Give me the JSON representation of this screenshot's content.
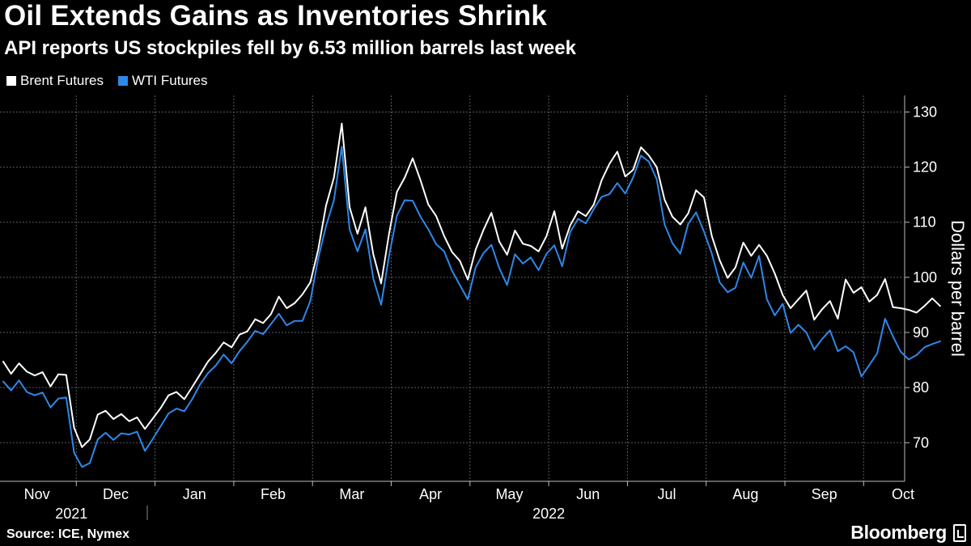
{
  "chart_data": {
    "type": "line",
    "title": "Oil Extends Gains as Inventories Shrink",
    "subtitle": "API reports US stockpiles fell by 6.53 million barrels last week",
    "ylabel": "Dollars per barrel",
    "xlabel": "",
    "ylim": [
      63,
      133
    ],
    "y_ticks": [
      70,
      80,
      90,
      100,
      110,
      120,
      130
    ],
    "x_range": [
      0,
      11.9
    ],
    "months": [
      "Nov",
      "Dec",
      "Jan",
      "Feb",
      "Mar",
      "Apr",
      "May",
      "Jun",
      "Jul",
      "Aug",
      "Sep",
      "Oct"
    ],
    "years": [
      {
        "label": "2021",
        "center": 1
      },
      {
        "label": "2022",
        "center": 7
      }
    ],
    "grid": true,
    "legend_position": "top-left",
    "series": [
      {
        "name": "Brent Futures",
        "color": "#ffffff",
        "points": [
          [
            0,
            84.7
          ],
          [
            0.1,
            82.5
          ],
          [
            0.2,
            84.4
          ],
          [
            0.3,
            82.9
          ],
          [
            0.4,
            82.2
          ],
          [
            0.5,
            82.8
          ],
          [
            0.6,
            80.2
          ],
          [
            0.7,
            82.4
          ],
          [
            0.8,
            82.3
          ],
          [
            0.9,
            72.7
          ],
          [
            1.0,
            69.2
          ],
          [
            1.1,
            70.6
          ],
          [
            1.2,
            75.1
          ],
          [
            1.3,
            75.8
          ],
          [
            1.4,
            74.3
          ],
          [
            1.5,
            75.2
          ],
          [
            1.6,
            73.9
          ],
          [
            1.7,
            74.6
          ],
          [
            1.8,
            72.5
          ],
          [
            1.9,
            74.4
          ],
          [
            2.0,
            76.3
          ],
          [
            2.1,
            78.6
          ],
          [
            2.2,
            79.2
          ],
          [
            2.3,
            77.9
          ],
          [
            2.4,
            80.1
          ],
          [
            2.5,
            82.4
          ],
          [
            2.6,
            84.7
          ],
          [
            2.7,
            86.3
          ],
          [
            2.8,
            88.2
          ],
          [
            2.9,
            87.3
          ],
          [
            3.0,
            89.6
          ],
          [
            3.1,
            90.2
          ],
          [
            3.2,
            92.4
          ],
          [
            3.3,
            91.7
          ],
          [
            3.4,
            93.3
          ],
          [
            3.5,
            96.5
          ],
          [
            3.6,
            94.4
          ],
          [
            3.7,
            95.3
          ],
          [
            3.8,
            96.9
          ],
          [
            3.9,
            99.1
          ],
          [
            4.0,
            105.0
          ],
          [
            4.1,
            113.0
          ],
          [
            4.2,
            118.1
          ],
          [
            4.3,
            127.9
          ],
          [
            4.4,
            112.7
          ],
          [
            4.5,
            107.9
          ],
          [
            4.6,
            112.7
          ],
          [
            4.7,
            104.2
          ],
          [
            4.8,
            98.9
          ],
          [
            4.9,
            107.9
          ],
          [
            5.0,
            115.5
          ],
          [
            5.1,
            118.1
          ],
          [
            5.2,
            121.6
          ],
          [
            5.3,
            117.6
          ],
          [
            5.4,
            113.2
          ],
          [
            5.5,
            111.1
          ],
          [
            5.6,
            107.5
          ],
          [
            5.7,
            104.6
          ],
          [
            5.8,
            103.0
          ],
          [
            5.9,
            99.6
          ],
          [
            6.0,
            105.0
          ],
          [
            6.1,
            108.6
          ],
          [
            6.2,
            111.7
          ],
          [
            6.3,
            106.5
          ],
          [
            6.4,
            104.1
          ],
          [
            6.5,
            108.5
          ],
          [
            6.6,
            106.1
          ],
          [
            6.7,
            105.7
          ],
          [
            6.8,
            104.7
          ],
          [
            6.9,
            107.5
          ],
          [
            7.0,
            112.0
          ],
          [
            7.1,
            105.2
          ],
          [
            7.2,
            109.4
          ],
          [
            7.3,
            112.0
          ],
          [
            7.4,
            111.1
          ],
          [
            7.5,
            113.2
          ],
          [
            7.6,
            117.6
          ],
          [
            7.7,
            120.6
          ],
          [
            7.8,
            122.8
          ],
          [
            7.9,
            118.3
          ],
          [
            8.0,
            119.5
          ],
          [
            8.1,
            123.6
          ],
          [
            8.2,
            122.1
          ],
          [
            8.3,
            120.0
          ],
          [
            8.4,
            114.1
          ],
          [
            8.5,
            111.0
          ],
          [
            8.6,
            109.6
          ],
          [
            8.7,
            111.6
          ],
          [
            8.8,
            115.8
          ],
          [
            8.9,
            114.5
          ],
          [
            9.0,
            107.5
          ],
          [
            9.1,
            103.1
          ],
          [
            9.2,
            99.9
          ],
          [
            9.3,
            101.8
          ],
          [
            9.4,
            106.3
          ],
          [
            9.5,
            103.9
          ],
          [
            9.6,
            105.9
          ],
          [
            9.7,
            103.9
          ],
          [
            9.8,
            100.7
          ],
          [
            9.9,
            96.8
          ],
          [
            10.0,
            94.4
          ],
          [
            10.1,
            96.0
          ],
          [
            10.2,
            97.6
          ],
          [
            10.3,
            92.3
          ],
          [
            10.4,
            94.2
          ],
          [
            10.5,
            95.7
          ],
          [
            10.6,
            92.5
          ],
          [
            10.7,
            99.6
          ],
          [
            10.8,
            97.2
          ],
          [
            10.9,
            98.2
          ],
          [
            11.0,
            95.6
          ],
          [
            11.1,
            96.8
          ],
          [
            11.2,
            99.7
          ],
          [
            11.3,
            94.6
          ],
          [
            11.4,
            94.4
          ],
          [
            11.5,
            94.1
          ],
          [
            11.6,
            93.6
          ],
          [
            11.7,
            94.8
          ],
          [
            11.8,
            96.2
          ],
          [
            11.9,
            94.8
          ]
        ]
      },
      {
        "name": "WTI Futures",
        "color": "#2e88e8",
        "points": [
          [
            0,
            81.1
          ],
          [
            0.1,
            79.5
          ],
          [
            0.2,
            81.3
          ],
          [
            0.3,
            79.2
          ],
          [
            0.4,
            78.6
          ],
          [
            0.5,
            79.1
          ],
          [
            0.6,
            76.4
          ],
          [
            0.7,
            78.0
          ],
          [
            0.8,
            78.2
          ],
          [
            0.9,
            68.2
          ],
          [
            1.0,
            65.6
          ],
          [
            1.1,
            66.3
          ],
          [
            1.2,
            70.6
          ],
          [
            1.3,
            71.8
          ],
          [
            1.4,
            70.5
          ],
          [
            1.5,
            71.7
          ],
          [
            1.6,
            71.5
          ],
          [
            1.7,
            72.0
          ],
          [
            1.8,
            68.5
          ],
          [
            1.9,
            70.7
          ],
          [
            2.0,
            73.0
          ],
          [
            2.1,
            75.3
          ],
          [
            2.2,
            76.2
          ],
          [
            2.3,
            75.7
          ],
          [
            2.4,
            77.9
          ],
          [
            2.5,
            80.6
          ],
          [
            2.6,
            82.6
          ],
          [
            2.7,
            84.0
          ],
          [
            2.8,
            86.0
          ],
          [
            2.9,
            84.4
          ],
          [
            3.0,
            86.6
          ],
          [
            3.1,
            88.3
          ],
          [
            3.2,
            90.3
          ],
          [
            3.3,
            89.7
          ],
          [
            3.4,
            91.5
          ],
          [
            3.5,
            93.4
          ],
          [
            3.6,
            91.3
          ],
          [
            3.7,
            92.1
          ],
          [
            3.8,
            92.1
          ],
          [
            3.9,
            95.7
          ],
          [
            4.0,
            103.4
          ],
          [
            4.1,
            109.3
          ],
          [
            4.2,
            114.0
          ],
          [
            4.3,
            123.7
          ],
          [
            4.4,
            108.7
          ],
          [
            4.5,
            104.7
          ],
          [
            4.6,
            108.7
          ],
          [
            4.7,
            99.8
          ],
          [
            4.8,
            95.0
          ],
          [
            4.9,
            103.9
          ],
          [
            5.0,
            111.2
          ],
          [
            5.1,
            114.0
          ],
          [
            5.2,
            113.9
          ],
          [
            5.3,
            111.0
          ],
          [
            5.4,
            108.7
          ],
          [
            5.5,
            106.0
          ],
          [
            5.6,
            104.7
          ],
          [
            5.7,
            101.2
          ],
          [
            5.8,
            98.6
          ],
          [
            5.9,
            96.0
          ],
          [
            6.0,
            101.8
          ],
          [
            6.1,
            104.4
          ],
          [
            6.2,
            105.9
          ],
          [
            6.3,
            101.7
          ],
          [
            6.4,
            98.6
          ],
          [
            6.5,
            104.2
          ],
          [
            6.6,
            102.5
          ],
          [
            6.7,
            103.6
          ],
          [
            6.8,
            101.3
          ],
          [
            6.9,
            104.3
          ],
          [
            7.0,
            105.8
          ],
          [
            7.1,
            102.0
          ],
          [
            7.2,
            108.2
          ],
          [
            7.3,
            110.6
          ],
          [
            7.4,
            109.8
          ],
          [
            7.5,
            112.4
          ],
          [
            7.6,
            114.6
          ],
          [
            7.7,
            115.1
          ],
          [
            7.8,
            117.1
          ],
          [
            7.9,
            115.2
          ],
          [
            8.0,
            118.1
          ],
          [
            8.1,
            122.1
          ],
          [
            8.2,
            121.0
          ],
          [
            8.3,
            117.8
          ],
          [
            8.4,
            109.6
          ],
          [
            8.5,
            106.2
          ],
          [
            8.6,
            104.3
          ],
          [
            8.7,
            109.7
          ],
          [
            8.8,
            111.8
          ],
          [
            8.9,
            108.3
          ],
          [
            9.0,
            104.3
          ],
          [
            9.1,
            99.1
          ],
          [
            9.2,
            97.3
          ],
          [
            9.3,
            98.1
          ],
          [
            9.4,
            102.7
          ],
          [
            9.5,
            99.9
          ],
          [
            9.6,
            103.9
          ],
          [
            9.7,
            96.0
          ],
          [
            9.8,
            93.1
          ],
          [
            9.9,
            95.2
          ],
          [
            10.0,
            89.9
          ],
          [
            10.1,
            91.4
          ],
          [
            10.2,
            90.0
          ],
          [
            10.3,
            86.9
          ],
          [
            10.4,
            88.8
          ],
          [
            10.5,
            90.4
          ],
          [
            10.6,
            86.6
          ],
          [
            10.7,
            87.5
          ],
          [
            10.8,
            86.4
          ],
          [
            10.9,
            82.0
          ],
          [
            11.0,
            84.1
          ],
          [
            11.1,
            86.2
          ],
          [
            11.2,
            92.5
          ],
          [
            11.3,
            89.3
          ],
          [
            11.4,
            86.5
          ],
          [
            11.5,
            85.1
          ],
          [
            11.6,
            85.9
          ],
          [
            11.7,
            87.3
          ],
          [
            11.8,
            87.9
          ],
          [
            11.9,
            88.4
          ]
        ]
      }
    ]
  },
  "legend": {
    "brent_label": "Brent Futures",
    "wti_label": "WTI Futures",
    "brent_color": "#ffffff",
    "wti_color": "#2e88e8"
  },
  "footer": {
    "source": "Source: ICE, Nymex",
    "brand": "Bloomberg"
  }
}
